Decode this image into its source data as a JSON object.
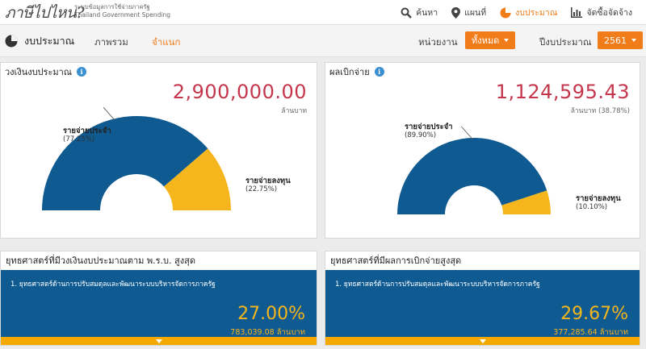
{
  "header": {
    "logo": "ภาษีไปไหน?",
    "subtitle_th": "ระบบข้อมูลการใช้จ่ายภาครัฐ",
    "subtitle_en": "Thailand Government Spending",
    "nav": [
      {
        "label": "ค้นหา",
        "icon": "search-icon"
      },
      {
        "label": "แผนที่",
        "icon": "map-pin-icon"
      },
      {
        "label": "งบประมาณ",
        "icon": "pie-chart-icon",
        "active": true
      },
      {
        "label": "จัดซื้อจัดจ้าง",
        "icon": "bar-chart-icon"
      }
    ]
  },
  "subbar": {
    "title": "งบประมาณ",
    "tabs": [
      "ภาพรวม",
      "จำแนก"
    ],
    "active_tab": "จำแนก",
    "agency_label": "หน่วยงาน",
    "agency_value": "ทั้งหมด",
    "year_label": "ปีงบประมาณ",
    "year_value": "2561"
  },
  "budget_panel": {
    "title": "วงเงินงบประมาณ",
    "amount": "2,900,000.00",
    "unit": "ล้านบาท",
    "recurring_label": "รายจ่ายประจำ",
    "recurring_pct": "(77.25%)",
    "capital_label": "รายจ่ายลงทุน",
    "capital_pct": "(22.75%)"
  },
  "spend_panel": {
    "title": "ผลเบิกจ่าย",
    "amount": "1,124,595.43",
    "unit": "ล้านบาท (38.78%)",
    "recurring_label": "รายจ่ายประจำ",
    "recurring_pct": "(89.90%)",
    "capital_label": "รายจ่ายลงทุน",
    "capital_pct": "(10.10%)"
  },
  "strategy_budget": {
    "title": "ยุทธศาสตร์ที่มีวงเงินงบประมาณตาม พ.ร.บ. สูงสุด",
    "item": "1. ยุทธศาสตร์ด้านการปรับสมดุลและพัฒนาระบบบริหารจัดการภาครัฐ",
    "percent": "27.00%",
    "amount": "783,039.08 ล้านบาท"
  },
  "strategy_spend": {
    "title": "ยุทธศาสตร์ที่มีผลการเบิกจ่ายสูงสุด",
    "item": "1. ยุทธศาสตร์ด้านการปรับสมดุลและพัฒนาระบบบริหารจัดการภาครัฐ",
    "percent": "29.67%",
    "amount": "377,285.64 ล้านบาท"
  },
  "chart_data": [
    {
      "type": "pie",
      "title": "วงเงินงบประมาณ",
      "categories": [
        "รายจ่ายประจำ",
        "รายจ่ายลงทุน"
      ],
      "values": [
        77.25,
        22.75
      ],
      "colors": [
        "#0e5a91",
        "#f5b51c"
      ]
    },
    {
      "type": "pie",
      "title": "ผลเบิกจ่าย",
      "categories": [
        "รายจ่ายประจำ",
        "รายจ่ายลงทุน"
      ],
      "values": [
        89.9,
        10.1
      ],
      "colors": [
        "#0e5a91",
        "#f5b51c"
      ]
    }
  ],
  "colors": {
    "accent": "#f07c1a",
    "primary": "#0e5a91",
    "highlight": "#f5b51c",
    "amount": "#c4364b"
  }
}
